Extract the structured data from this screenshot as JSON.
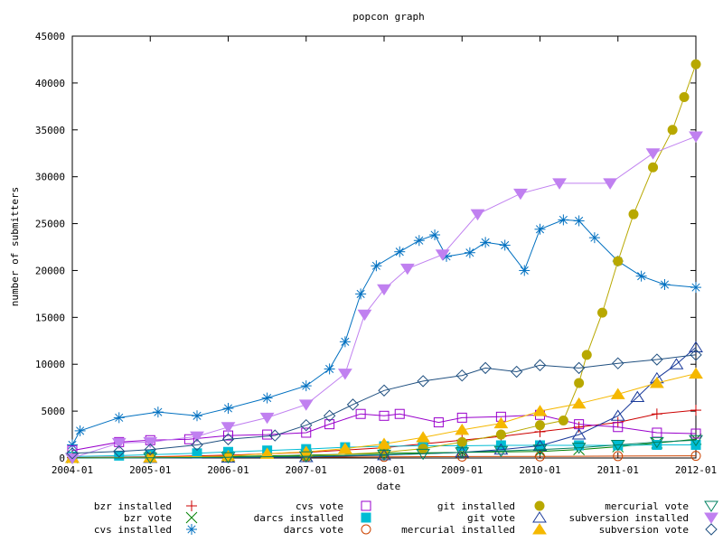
{
  "chart_data": {
    "type": "line",
    "title": "popcon graph",
    "xlabel": "date",
    "ylabel": "number of submitters",
    "xlim": [
      "2004-01",
      "2012-01"
    ],
    "ylim": [
      0,
      45000
    ],
    "grid": false,
    "legend_position": "bottom",
    "x_ticks": [
      "2004-01",
      "2005-01",
      "2006-01",
      "2007-01",
      "2008-01",
      "2009-01",
      "2010-01",
      "2011-01",
      "2012-01"
    ],
    "y_ticks": [
      "0",
      "5000",
      "10000",
      "15000",
      "20000",
      "25000",
      "30000",
      "35000",
      "40000",
      "45000"
    ],
    "series": [
      {
        "name": "bzr installed",
        "color": "#cc0000",
        "marker": "plus",
        "points": [
          [
            2004.0,
            50
          ],
          [
            2005.0,
            120
          ],
          [
            2006.0,
            300
          ],
          [
            2007.0,
            600
          ],
          [
            2008.0,
            1100
          ],
          [
            2008.5,
            1500
          ],
          [
            2009.0,
            1900
          ],
          [
            2009.5,
            2300
          ],
          [
            2010.0,
            2800
          ],
          [
            2010.5,
            3300
          ],
          [
            2011.0,
            3800
          ],
          [
            2011.5,
            4700
          ],
          [
            2012.0,
            5100
          ]
        ]
      },
      {
        "name": "bzr vote",
        "color": "#008000",
        "marker": "x",
        "points": [
          [
            2004.0,
            30
          ],
          [
            2005.0,
            80
          ],
          [
            2006.0,
            150
          ],
          [
            2007.0,
            300
          ],
          [
            2008.0,
            500
          ],
          [
            2009.0,
            600
          ],
          [
            2010.0,
            700
          ],
          [
            2010.5,
            900
          ],
          [
            2011.0,
            1200
          ],
          [
            2011.5,
            1600
          ],
          [
            2012.0,
            2000
          ]
        ]
      },
      {
        "name": "cvs installed",
        "color": "#0070c0",
        "marker": "asterisk",
        "points": [
          [
            2004.0,
            1400
          ],
          [
            2004.1,
            2900
          ],
          [
            2004.6,
            4300
          ],
          [
            2005.1,
            4900
          ],
          [
            2005.6,
            4500
          ],
          [
            2006.0,
            5300
          ],
          [
            2006.5,
            6400
          ],
          [
            2007.0,
            7700
          ],
          [
            2007.3,
            9500
          ],
          [
            2007.5,
            12400
          ],
          [
            2007.7,
            17500
          ],
          [
            2007.9,
            20500
          ],
          [
            2008.2,
            22000
          ],
          [
            2008.45,
            23200
          ],
          [
            2008.65,
            23800
          ],
          [
            2008.8,
            21500
          ],
          [
            2009.1,
            21900
          ],
          [
            2009.3,
            23000
          ],
          [
            2009.55,
            22700
          ],
          [
            2009.8,
            20000
          ],
          [
            2010.0,
            24400
          ],
          [
            2010.3,
            25400
          ],
          [
            2010.5,
            25300
          ],
          [
            2010.7,
            23500
          ],
          [
            2011.0,
            21000
          ],
          [
            2011.3,
            19400
          ],
          [
            2011.6,
            18500
          ],
          [
            2012.0,
            18200
          ]
        ]
      },
      {
        "name": "cvs vote",
        "color": "#9900cc",
        "marker": "square",
        "points": [
          [
            2004.0,
            800
          ],
          [
            2004.6,
            1700
          ],
          [
            2005.0,
            1900
          ],
          [
            2005.5,
            2000
          ],
          [
            2006.0,
            2400
          ],
          [
            2006.5,
            2500
          ],
          [
            2007.0,
            2700
          ],
          [
            2007.3,
            3600
          ],
          [
            2007.7,
            4700
          ],
          [
            2008.0,
            4500
          ],
          [
            2008.2,
            4700
          ],
          [
            2008.7,
            3800
          ],
          [
            2009.0,
            4300
          ],
          [
            2009.5,
            4400
          ],
          [
            2010.0,
            4600
          ],
          [
            2010.5,
            3600
          ],
          [
            2011.0,
            3300
          ],
          [
            2011.5,
            2700
          ],
          [
            2012.0,
            2600
          ]
        ]
      },
      {
        "name": "darcs installed",
        "color": "#00bcd4",
        "marker": "filled-square",
        "points": [
          [
            2004.0,
            150
          ],
          [
            2004.6,
            250
          ],
          [
            2005.0,
            350
          ],
          [
            2005.6,
            500
          ],
          [
            2006.0,
            650
          ],
          [
            2006.5,
            800
          ],
          [
            2007.0,
            950
          ],
          [
            2007.5,
            1150
          ],
          [
            2008.0,
            1250
          ],
          [
            2008.5,
            1300
          ],
          [
            2009.0,
            1300
          ],
          [
            2009.5,
            1350
          ],
          [
            2010.0,
            1350
          ],
          [
            2010.5,
            1350
          ],
          [
            2011.0,
            1350
          ],
          [
            2011.5,
            1400
          ],
          [
            2012.0,
            1400
          ]
        ]
      },
      {
        "name": "darcs vote",
        "color": "#cc4400",
        "marker": "circle",
        "points": [
          [
            2004.0,
            20
          ],
          [
            2005.0,
            40
          ],
          [
            2006.0,
            60
          ],
          [
            2007.0,
            90
          ],
          [
            2008.0,
            120
          ],
          [
            2009.0,
            150
          ],
          [
            2010.0,
            170
          ],
          [
            2011.0,
            200
          ],
          [
            2012.0,
            230
          ]
        ]
      },
      {
        "name": "git installed",
        "color": "#b8a800",
        "marker": "filled-circle",
        "points": [
          [
            2004.0,
            0
          ],
          [
            2005.0,
            20
          ],
          [
            2006.0,
            80
          ],
          [
            2007.0,
            200
          ],
          [
            2008.0,
            600
          ],
          [
            2008.5,
            1000
          ],
          [
            2009.0,
            1700
          ],
          [
            2009.5,
            2500
          ],
          [
            2010.0,
            3500
          ],
          [
            2010.3,
            4000
          ],
          [
            2010.5,
            8000
          ],
          [
            2010.6,
            11000
          ],
          [
            2010.8,
            15500
          ],
          [
            2011.0,
            21000
          ],
          [
            2011.2,
            26000
          ],
          [
            2011.45,
            31000
          ],
          [
            2011.7,
            35000
          ],
          [
            2011.85,
            38500
          ],
          [
            2012.0,
            42000
          ]
        ]
      },
      {
        "name": "git vote",
        "color": "#1a3a9a",
        "marker": "triangle-up",
        "points": [
          [
            2004.0,
            0
          ],
          [
            2005.0,
            10
          ],
          [
            2006.0,
            40
          ],
          [
            2007.0,
            100
          ],
          [
            2008.0,
            300
          ],
          [
            2009.0,
            600
          ],
          [
            2009.5,
            900
          ],
          [
            2010.0,
            1300
          ],
          [
            2010.5,
            2500
          ],
          [
            2011.0,
            4500
          ],
          [
            2011.25,
            6500
          ],
          [
            2011.5,
            8500
          ],
          [
            2011.75,
            10000
          ],
          [
            2012.0,
            11800
          ]
        ]
      },
      {
        "name": "mercurial installed",
        "color": "#f5b800",
        "marker": "filled-triangle-up",
        "points": [
          [
            2004.0,
            0
          ],
          [
            2005.0,
            60
          ],
          [
            2006.0,
            200
          ],
          [
            2006.5,
            450
          ],
          [
            2007.0,
            650
          ],
          [
            2007.5,
            1000
          ],
          [
            2008.0,
            1500
          ],
          [
            2008.5,
            2200
          ],
          [
            2009.0,
            3000
          ],
          [
            2009.5,
            3700
          ],
          [
            2010.0,
            5000
          ],
          [
            2010.5,
            5800
          ],
          [
            2011.0,
            6800
          ],
          [
            2011.5,
            8000
          ],
          [
            2012.0,
            9000
          ]
        ]
      },
      {
        "name": "mercurial vote",
        "color": "#008060",
        "marker": "triangle-down",
        "points": [
          [
            2004.0,
            0
          ],
          [
            2005.0,
            20
          ],
          [
            2006.0,
            80
          ],
          [
            2007.0,
            180
          ],
          [
            2008.0,
            350
          ],
          [
            2008.5,
            450
          ],
          [
            2009.0,
            600
          ],
          [
            2009.5,
            750
          ],
          [
            2010.0,
            900
          ],
          [
            2010.5,
            1100
          ],
          [
            2011.0,
            1400
          ],
          [
            2011.5,
            1700
          ],
          [
            2012.0,
            1900
          ]
        ]
      },
      {
        "name": "subversion installed",
        "color": "#c080f0",
        "marker": "filled-triangle-down",
        "points": [
          [
            2004.0,
            0
          ],
          [
            2004.6,
            1600
          ],
          [
            2005.0,
            1700
          ],
          [
            2005.6,
            2300
          ],
          [
            2006.0,
            3300
          ],
          [
            2006.5,
            4300
          ],
          [
            2007.0,
            5700
          ],
          [
            2007.5,
            9000
          ],
          [
            2007.75,
            15300
          ],
          [
            2008.0,
            18000
          ],
          [
            2008.3,
            20200
          ],
          [
            2008.75,
            21700
          ],
          [
            2009.2,
            26000
          ],
          [
            2009.75,
            28200
          ],
          [
            2010.25,
            29300
          ],
          [
            2010.9,
            29300
          ],
          [
            2011.45,
            32500
          ],
          [
            2012.0,
            34300
          ]
        ]
      },
      {
        "name": "subversion vote",
        "color": "#205080",
        "marker": "diamond",
        "points": [
          [
            2004.0,
            500
          ],
          [
            2004.6,
            700
          ],
          [
            2005.0,
            900
          ],
          [
            2005.6,
            1400
          ],
          [
            2006.0,
            2000
          ],
          [
            2006.6,
            2400
          ],
          [
            2007.0,
            3500
          ],
          [
            2007.3,
            4500
          ],
          [
            2007.6,
            5700
          ],
          [
            2008.0,
            7200
          ],
          [
            2008.5,
            8200
          ],
          [
            2009.0,
            8800
          ],
          [
            2009.3,
            9600
          ],
          [
            2009.7,
            9200
          ],
          [
            2010.0,
            9900
          ],
          [
            2010.5,
            9600
          ],
          [
            2011.0,
            10100
          ],
          [
            2011.5,
            10500
          ],
          [
            2012.0,
            11000
          ]
        ]
      }
    ]
  }
}
